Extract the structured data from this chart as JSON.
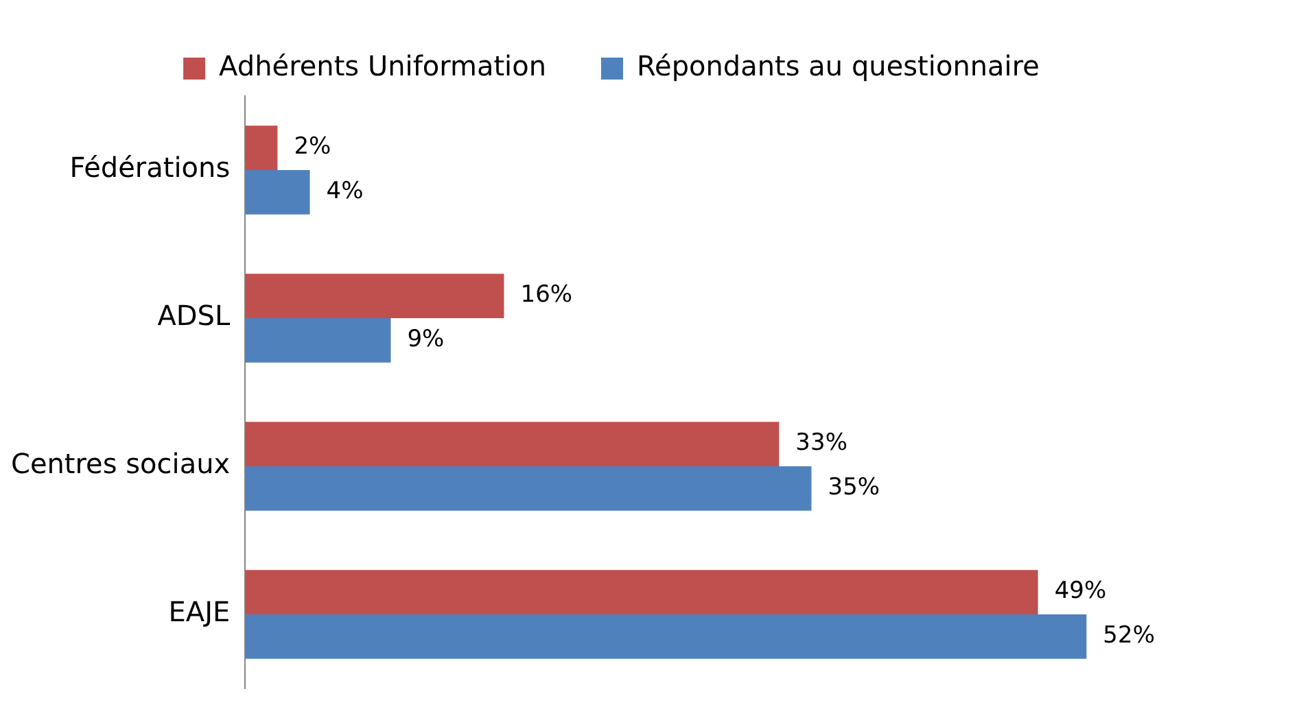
{
  "chart_data": {
    "type": "bar",
    "orientation": "horizontal",
    "categories": [
      "Fédérations",
      "ADSL",
      "Centres sociaux",
      "EAJE"
    ],
    "series": [
      {
        "name": "Adhérents Uniformation",
        "color": "#c0504d",
        "values": [
          2,
          16,
          33,
          49
        ],
        "value_labels": [
          "2%",
          "16%",
          "33%",
          "49%"
        ]
      },
      {
        "name": "Répondants au questionnaire",
        "color": "#4f81bd",
        "values": [
          4,
          9,
          35,
          52
        ],
        "value_labels": [
          "4%",
          "9%",
          "35%",
          "52%"
        ]
      }
    ],
    "legend": "top",
    "grid": false,
    "tick_labels": "y"
  }
}
